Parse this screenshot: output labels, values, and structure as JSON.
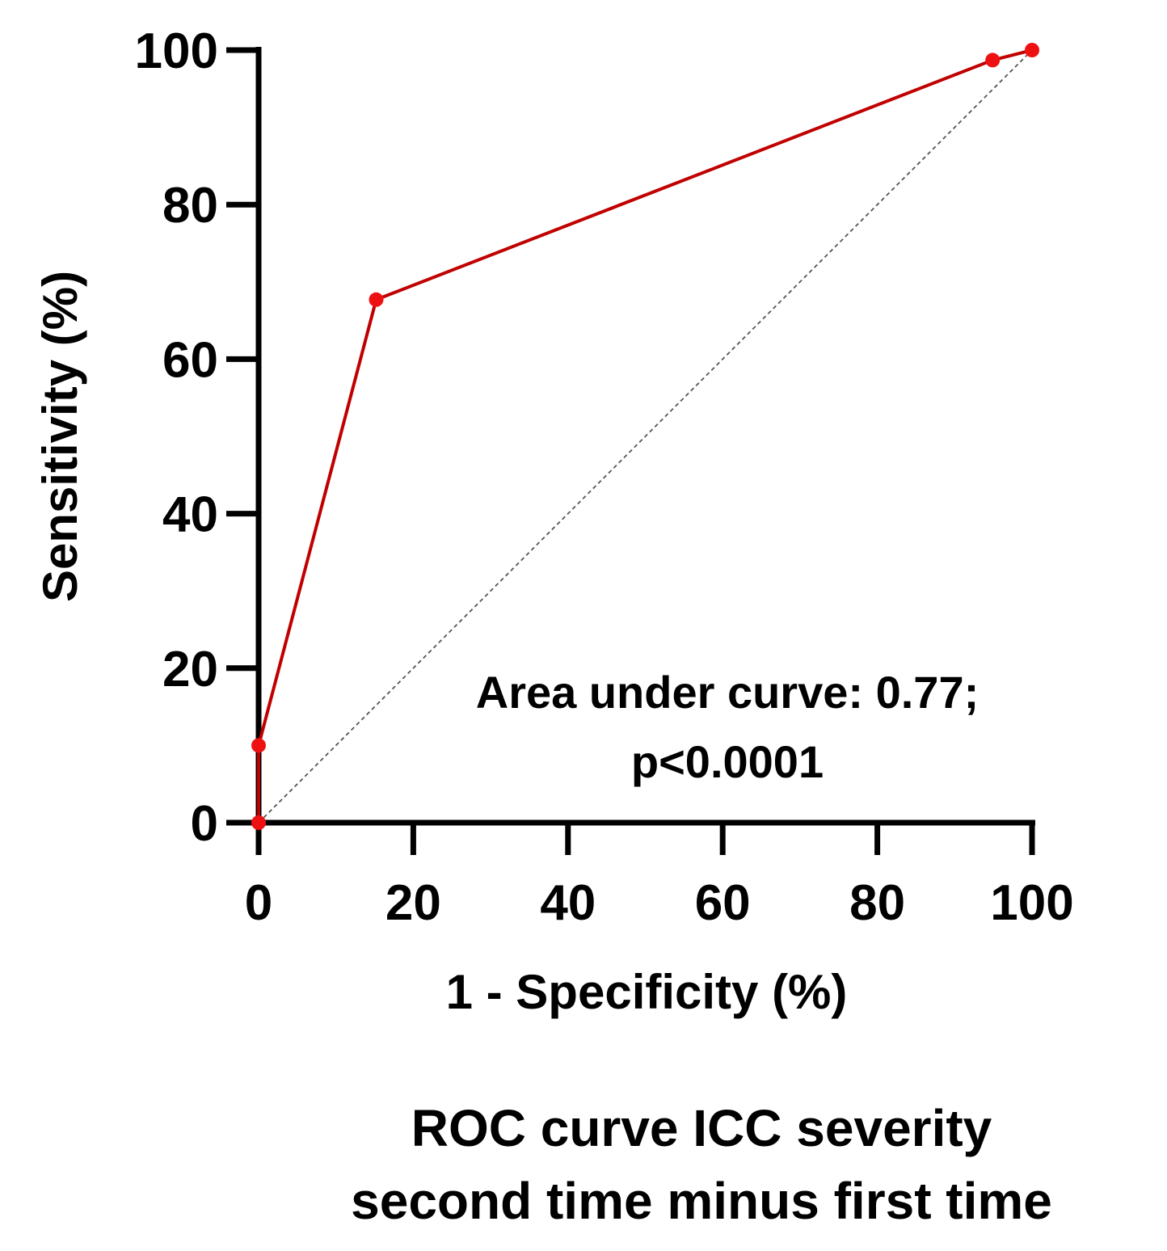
{
  "chart_data": {
    "type": "line",
    "xlabel": "1 - Specificity (%)",
    "ylabel": "Sensitivity  (%)",
    "xlim": [
      0,
      100
    ],
    "ylim": [
      0,
      100
    ],
    "x_ticks": [
      0,
      20,
      40,
      60,
      80,
      100
    ],
    "y_ticks": [
      0,
      20,
      40,
      60,
      80,
      100
    ],
    "series": [
      {
        "name": "ROC curve",
        "color": "#c00000",
        "marker_color": "#ee1111",
        "points": [
          {
            "x": 0,
            "y": 0
          },
          {
            "x": 0,
            "y": 10
          },
          {
            "x": 15.2,
            "y": 67.7
          },
          {
            "x": 94.9,
            "y": 98.7
          },
          {
            "x": 100,
            "y": 100
          }
        ]
      },
      {
        "name": "Reference line",
        "style": "dashed",
        "color": "#555555",
        "points": [
          {
            "x": 0,
            "y": 0
          },
          {
            "x": 100,
            "y": 100
          }
        ]
      }
    ],
    "annotation": {
      "line1": "Area under curve: 0.77;",
      "line2": "p<0.0001"
    },
    "title": {
      "line1": "ROC curve ICC severity",
      "line2": "second time minus first time"
    }
  }
}
